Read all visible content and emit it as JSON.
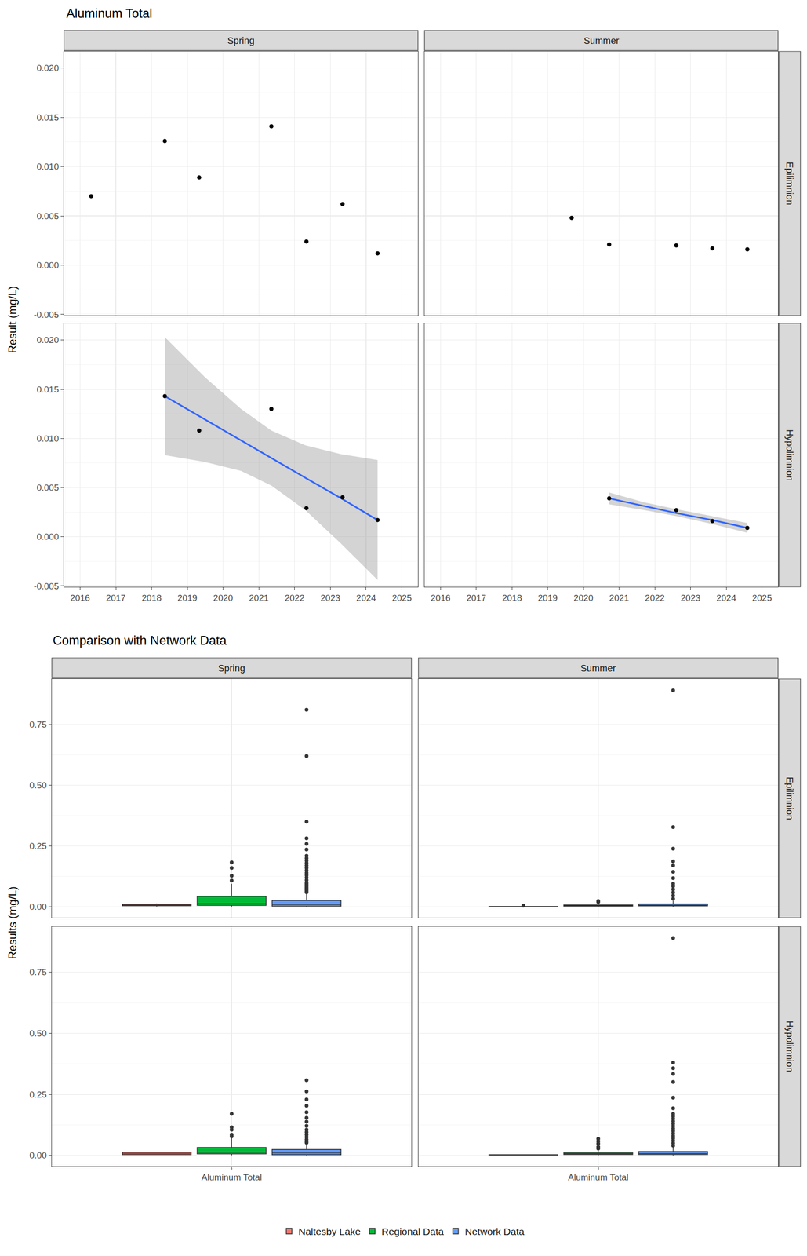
{
  "chart_data": [
    {
      "type": "scatter",
      "title": "Aluminum Total",
      "y_label": "Result (mg/L)",
      "columns": [
        "Spring",
        "Summer"
      ],
      "rows": [
        "Epilimnion",
        "Hypolimnion"
      ],
      "xlim": [
        2015.55,
        2025.45
      ],
      "xticks": [
        2016,
        2017,
        2018,
        2019,
        2020,
        2021,
        2022,
        2023,
        2024,
        2025
      ],
      "ylim": [
        -0.0051,
        0.0217
      ],
      "yticks": [
        -0.005,
        {
          "value": 0,
          "label": "0.000"
        },
        0.005,
        {
          "value": 0.01,
          "label": "0.010"
        },
        0.015,
        {
          "value": 0.02,
          "label": "0.020"
        }
      ],
      "grid": true,
      "panels": [
        {
          "column": "Spring",
          "row": "Epilimnion",
          "points": {
            "color": "#000000",
            "x": [
              2016.31,
              2018.37,
              2019.33,
              2021.35,
              2022.33,
              2023.34,
              2024.32
            ],
            "values": [
              0.007,
              0.0126,
              0.0089,
              0.0141,
              0.0024,
              0.0062,
              0.0012
            ]
          }
        },
        {
          "column": "Summer",
          "row": "Epilimnion",
          "points": {
            "color": "#000000",
            "x": [
              2019.67,
              2020.72,
              2022.6,
              2023.61,
              2024.59
            ],
            "values": [
              0.0048,
              0.0021,
              0.002,
              0.0017,
              0.0016
            ]
          }
        },
        {
          "column": "Spring",
          "row": "Hypolimnion",
          "points": {
            "color": "#000000",
            "x": [
              2018.37,
              2019.33,
              2021.35,
              2022.33,
              2023.34,
              2024.32
            ],
            "values": [
              0.0143,
              0.0108,
              0.013,
              0.0029,
              0.004,
              0.0017
            ]
          },
          "trend": {
            "color": "#3366FF",
            "x": [
              2018.37,
              2019.5,
              2020.5,
              2021.35,
              2022.3,
              2023.3,
              2024.32
            ],
            "values": [
              0.0143,
              0.0119,
              0.0098,
              0.008,
              0.006,
              0.0039,
              0.0017
            ],
            "lower": [
              0.0083,
              0.0076,
              0.0067,
              0.0052,
              0.0027,
              -0.0007,
              -0.0044
            ],
            "upper": [
              0.0203,
              0.0162,
              0.013,
              0.0108,
              0.0093,
              0.0084,
              0.0078
            ]
          }
        },
        {
          "column": "Summer",
          "row": "Hypolimnion",
          "points": {
            "color": "#000000",
            "x": [
              2020.72,
              2022.6,
              2023.61,
              2024.59
            ],
            "values": [
              0.0039,
              0.0027,
              0.0016,
              0.0009
            ]
          },
          "trend": {
            "color": "#3366FF",
            "x": [
              2020.72,
              2021.7,
              2022.6,
              2023.6,
              2024.59
            ],
            "values": [
              0.0039,
              0.0031,
              0.0024,
              0.0017,
              0.0009
            ],
            "lower": [
              0.0033,
              0.0027,
              0.0021,
              0.0013,
              0.0004
            ],
            "upper": [
              0.0045,
              0.0035,
              0.0028,
              0.0021,
              0.0014
            ]
          }
        }
      ]
    },
    {
      "type": "box",
      "title": "Comparison with Network Data",
      "y_label": "Results (mg/L)",
      "categories": [
        "Aluminum Total"
      ],
      "columns": [
        "Spring",
        "Summer"
      ],
      "rows": [
        "Epilimnion",
        "Hypolimnion"
      ],
      "ylim": [
        -0.0446,
        0.937
      ],
      "yticks": [
        {
          "value": 0,
          "label": "0.00"
        },
        0.25,
        {
          "value": 0.5,
          "label": "0.50"
        },
        0.75
      ],
      "grid": true,
      "legend": "bottom",
      "series": [
        {
          "name": "Naltesby Lake",
          "color": "#F8766D"
        },
        {
          "name": "Regional Data",
          "color": "#00BA38"
        },
        {
          "name": "Network Data",
          "color": "#619CFF"
        }
      ],
      "panels": [
        {
          "column": "Spring",
          "row": "Epilimnion",
          "boxes": [
            {
              "series": "Naltesby Lake",
              "lowerfence": 0.0012,
              "q1": 0.0043,
              "median": 0.007,
              "q3": 0.0108,
              "upperfence": 0.0141,
              "outliers": []
            },
            {
              "series": "Regional Data",
              "lowerfence": 0.0005,
              "q1": 0.006,
              "median": 0.013,
              "q3": 0.043,
              "upperfence": 0.095,
              "outliers": [
                0.108,
                0.128,
                0.16,
                0.183
              ]
            },
            {
              "series": "Network Data",
              "lowerfence": 0,
              "q1": 0.003,
              "median": 0.01,
              "q3": 0.026,
              "upperfence": 0.056,
              "outliers": [
                0.06,
                0.065,
                0.07,
                0.075,
                0.08,
                0.085,
                0.09,
                0.095,
                0.1,
                0.11,
                0.12,
                0.13,
                0.14,
                0.15,
                0.16,
                0.17,
                0.18,
                0.19,
                0.2,
                0.21,
                0.236,
                0.259,
                0.282,
                0.35,
                0.62,
                0.81
              ]
            }
          ]
        },
        {
          "column": "Summer",
          "row": "Epilimnion",
          "boxes": [
            {
              "series": "Naltesby Lake",
              "lowerfence": 0.0016,
              "q1": 0.0017,
              "median": 0.002,
              "q3": 0.0021,
              "upperfence": 0.0021,
              "outliers": [
                0.0048
              ]
            },
            {
              "series": "Regional Data",
              "lowerfence": 0,
              "q1": 0.003,
              "median": 0.005,
              "q3": 0.008,
              "upperfence": 0.015,
              "outliers": [
                0.02,
                0.024
              ]
            },
            {
              "series": "Network Data",
              "lowerfence": 0,
              "q1": 0.004,
              "median": 0.007,
              "q3": 0.012,
              "upperfence": 0.025,
              "outliers": [
                0.033,
                0.046,
                0.059,
                0.072,
                0.085,
                0.095,
                0.118,
                0.144,
                0.17,
                0.187,
                0.239,
                0.328,
                0.89
              ]
            }
          ]
        },
        {
          "column": "Spring",
          "row": "Hypolimnion",
          "boxes": [
            {
              "series": "Naltesby Lake",
              "lowerfence": 0.0017,
              "q1": 0.0032,
              "median": 0.0074,
              "q3": 0.0125,
              "upperfence": 0.0143,
              "outliers": []
            },
            {
              "series": "Regional Data",
              "lowerfence": 0.0005,
              "q1": 0.006,
              "median": 0.013,
              "q3": 0.033,
              "upperfence": 0.07,
              "outliers": [
                0.078,
                0.085,
                0.105,
                0.115,
                0.17
              ]
            },
            {
              "series": "Network Data",
              "lowerfence": 0,
              "q1": 0.003,
              "median": 0.01,
              "q3": 0.024,
              "upperfence": 0.05,
              "outliers": [
                0.052,
                0.058,
                0.065,
                0.075,
                0.085,
                0.095,
                0.105,
                0.121,
                0.138,
                0.154,
                0.177,
                0.203,
                0.229,
                0.262,
                0.308
              ]
            }
          ]
        },
        {
          "column": "Summer",
          "row": "Hypolimnion",
          "boxes": [
            {
              "series": "Naltesby Lake",
              "lowerfence": 0.0009,
              "q1": 0.0014,
              "median": 0.0022,
              "q3": 0.003,
              "upperfence": 0.0039,
              "outliers": []
            },
            {
              "series": "Regional Data",
              "lowerfence": 0,
              "q1": 0.004,
              "median": 0.007,
              "q3": 0.011,
              "upperfence": 0.02,
              "outliers": [
                0.028,
                0.035,
                0.048,
                0.058,
                0.068
              ]
            },
            {
              "series": "Network Data",
              "lowerfence": 0,
              "q1": 0.004,
              "median": 0.008,
              "q3": 0.016,
              "upperfence": 0.035,
              "outliers": [
                0.04,
                0.05,
                0.06,
                0.07,
                0.08,
                0.09,
                0.1,
                0.11,
                0.12,
                0.13,
                0.14,
                0.15,
                0.16,
                0.17,
                0.193,
                0.236,
                0.301,
                0.334,
                0.357,
                0.38,
                0.89
              ]
            }
          ]
        }
      ]
    }
  ]
}
